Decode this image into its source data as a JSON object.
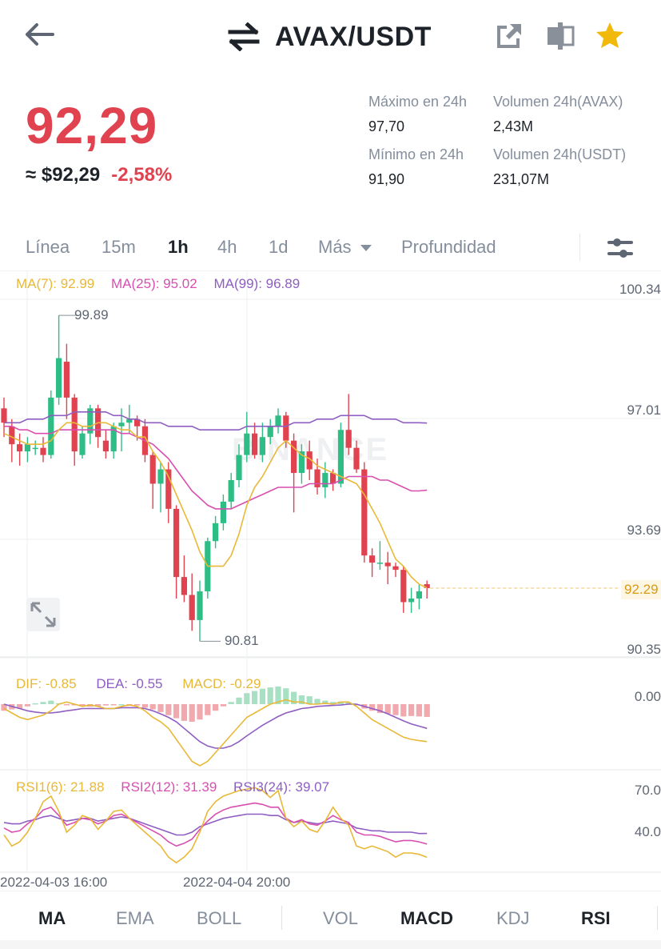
{
  "header": {
    "pair": "AVAX/USDT",
    "icons": [
      "back-arrow-icon",
      "swap-icon",
      "share-icon",
      "compare-icon",
      "star-icon"
    ]
  },
  "price": {
    "last": "92,29",
    "usd": "≈ $92,29",
    "change": "-2,58%"
  },
  "stats": {
    "high_label": "Máximo en 24h",
    "high": "97,70",
    "low_label": "Mínimo en 24h",
    "low": "91,90",
    "vol_base_label": "Volumen 24h(AVAX)",
    "vol_base": "2,43M",
    "vol_quote_label": "Volumen 24h(USDT)",
    "vol_quote": "231,07M"
  },
  "tabs": {
    "line": "Línea",
    "m15": "15m",
    "h1": "1h",
    "h4": "4h",
    "d1": "1d",
    "more": "Más",
    "depth": "Profundidad",
    "active": "1h"
  },
  "indicators": {
    "ma7": "MA(7): 92.99",
    "ma25": "MA(25): 95.02",
    "ma99": "MA(99): 96.89",
    "dif": "DIF: -0.85",
    "dea": "DEA: -0.55",
    "macd": "MACD: -0.29",
    "rsi1": "RSI1(6): 21.88",
    "rsi2": "RSI2(12): 31.39",
    "rsi3": "RSI3(24): 39.07"
  },
  "axis": {
    "price_ticks": [
      "100.34",
      "97.01",
      "93.69",
      "90.35"
    ],
    "current_price": "92.29",
    "high_mark": "99.89",
    "low_mark": "90.81",
    "macd_tick": "0.00",
    "rsi_ticks": [
      "70.0",
      "40.0"
    ],
    "time_ticks": [
      "2022-04-03 16:00",
      "2022-04-04 20:00"
    ]
  },
  "watermark": "BINANCE",
  "bottom": {
    "ma": "MA",
    "ema": "EMA",
    "boll": "BOLL",
    "vol": "VOL",
    "macd": "MACD",
    "kdj": "KDJ",
    "rsi": "RSI"
  },
  "colors": {
    "up": "#2ebd85",
    "down": "#e0434f",
    "ma7": "#e8b837",
    "ma25": "#d84fb0",
    "ma99": "#8e5ec2",
    "accent": "#f0b90b"
  },
  "chart_data": {
    "type": "candlestick",
    "interval": "1h",
    "candles": [
      {
        "o": 97.3,
        "h": 97.6,
        "l": 96.5,
        "c": 96.9
      },
      {
        "o": 96.8,
        "h": 97.0,
        "l": 95.8,
        "c": 96.3
      },
      {
        "o": 96.3,
        "h": 96.6,
        "l": 95.7,
        "c": 96.1
      },
      {
        "o": 96.1,
        "h": 96.5,
        "l": 95.8,
        "c": 96.3
      },
      {
        "o": 96.2,
        "h": 96.4,
        "l": 96.0,
        "c": 96.2
      },
      {
        "o": 96.2,
        "h": 96.5,
        "l": 95.8,
        "c": 96.0
      },
      {
        "o": 96.0,
        "h": 97.8,
        "l": 95.9,
        "c": 97.6
      },
      {
        "o": 97.6,
        "h": 99.89,
        "l": 97.4,
        "c": 98.7
      },
      {
        "o": 98.6,
        "h": 99.1,
        "l": 97.0,
        "c": 97.6
      },
      {
        "o": 97.6,
        "h": 97.7,
        "l": 95.7,
        "c": 96.1
      },
      {
        "o": 96.0,
        "h": 96.8,
        "l": 95.9,
        "c": 96.6
      },
      {
        "o": 96.6,
        "h": 97.4,
        "l": 96.3,
        "c": 97.3
      },
      {
        "o": 97.3,
        "h": 97.4,
        "l": 96.2,
        "c": 96.5
      },
      {
        "o": 96.4,
        "h": 96.7,
        "l": 95.9,
        "c": 96.1
      },
      {
        "o": 96.1,
        "h": 96.9,
        "l": 95.9,
        "c": 96.8
      },
      {
        "o": 96.8,
        "h": 97.3,
        "l": 96.1,
        "c": 96.9
      },
      {
        "o": 96.9,
        "h": 97.4,
        "l": 96.6,
        "c": 97.0
      },
      {
        "o": 97.0,
        "h": 97.1,
        "l": 96.4,
        "c": 96.8
      },
      {
        "o": 96.8,
        "h": 97.0,
        "l": 95.8,
        "c": 96.0
      },
      {
        "o": 96.0,
        "h": 96.1,
        "l": 94.5,
        "c": 95.2
      },
      {
        "o": 95.2,
        "h": 95.8,
        "l": 94.4,
        "c": 95.6
      },
      {
        "o": 95.6,
        "h": 95.8,
        "l": 94.1,
        "c": 94.5
      },
      {
        "o": 94.5,
        "h": 94.6,
        "l": 92.0,
        "c": 92.6
      },
      {
        "o": 92.6,
        "h": 93.2,
        "l": 91.9,
        "c": 92.1
      },
      {
        "o": 92.1,
        "h": 92.7,
        "l": 91.1,
        "c": 91.4
      },
      {
        "o": 91.4,
        "h": 92.5,
        "l": 90.81,
        "c": 92.2
      },
      {
        "o": 92.2,
        "h": 93.7,
        "l": 92.0,
        "c": 93.6
      },
      {
        "o": 93.6,
        "h": 94.3,
        "l": 93.4,
        "c": 94.1
      },
      {
        "o": 94.1,
        "h": 94.9,
        "l": 93.9,
        "c": 94.7
      },
      {
        "o": 94.7,
        "h": 95.5,
        "l": 94.5,
        "c": 95.3
      },
      {
        "o": 95.3,
        "h": 96.3,
        "l": 95.1,
        "c": 96.0
      },
      {
        "o": 96.0,
        "h": 97.2,
        "l": 95.8,
        "c": 96.6
      },
      {
        "o": 96.6,
        "h": 96.9,
        "l": 95.9,
        "c": 96.0
      },
      {
        "o": 96.0,
        "h": 96.9,
        "l": 95.8,
        "c": 96.5
      },
      {
        "o": 96.5,
        "h": 97.0,
        "l": 96.3,
        "c": 96.8
      },
      {
        "o": 96.8,
        "h": 97.3,
        "l": 96.6,
        "c": 97.1
      },
      {
        "o": 97.1,
        "h": 97.2,
        "l": 96.2,
        "c": 96.4
      },
      {
        "o": 96.4,
        "h": 96.6,
        "l": 94.4,
        "c": 95.5
      },
      {
        "o": 95.5,
        "h": 96.3,
        "l": 95.2,
        "c": 96.1
      },
      {
        "o": 96.1,
        "h": 96.4,
        "l": 95.3,
        "c": 95.6
      },
      {
        "o": 95.6,
        "h": 95.9,
        "l": 94.9,
        "c": 95.1
      },
      {
        "o": 95.1,
        "h": 95.8,
        "l": 94.8,
        "c": 95.5
      },
      {
        "o": 95.5,
        "h": 95.6,
        "l": 95.0,
        "c": 95.2
      },
      {
        "o": 95.2,
        "h": 96.9,
        "l": 95.1,
        "c": 96.7
      },
      {
        "o": 96.7,
        "h": 97.7,
        "l": 96.0,
        "c": 96.2
      },
      {
        "o": 96.2,
        "h": 96.4,
        "l": 95.5,
        "c": 95.6
      },
      {
        "o": 95.6,
        "h": 95.8,
        "l": 93.0,
        "c": 93.2
      },
      {
        "o": 93.2,
        "h": 93.4,
        "l": 92.6,
        "c": 93.0
      },
      {
        "o": 93.0,
        "h": 93.6,
        "l": 92.8,
        "c": 93.0
      },
      {
        "o": 93.0,
        "h": 93.3,
        "l": 92.4,
        "c": 92.9
      },
      {
        "o": 92.9,
        "h": 93.0,
        "l": 92.6,
        "c": 92.8
      },
      {
        "o": 92.8,
        "h": 92.9,
        "l": 91.6,
        "c": 91.9
      },
      {
        "o": 91.9,
        "h": 92.3,
        "l": 91.6,
        "c": 92.0
      },
      {
        "o": 92.0,
        "h": 92.4,
        "l": 91.7,
        "c": 92.2
      },
      {
        "o": 92.4,
        "h": 92.5,
        "l": 92.0,
        "c": 92.29
      }
    ],
    "ma7": [
      96.6,
      96.5,
      96.4,
      96.3,
      96.3,
      96.3,
      96.4,
      96.7,
      96.9,
      96.9,
      96.8,
      96.8,
      96.9,
      96.9,
      96.8,
      96.7,
      96.7,
      96.5,
      96.5,
      96.1,
      95.8,
      95.4,
      94.9,
      94.4,
      93.9,
      93.3,
      92.9,
      92.9,
      92.9,
      93.2,
      93.8,
      94.6,
      95.1,
      95.4,
      95.8,
      96.2,
      96.4,
      96.2,
      96.0,
      95.9,
      95.7,
      95.6,
      95.5,
      95.4,
      95.3,
      95.2,
      94.9,
      94.5,
      94.1,
      93.6,
      93.1,
      92.9,
      92.6,
      92.4,
      92.3
    ],
    "ma25": [
      96.8,
      96.8,
      96.7,
      96.7,
      96.6,
      96.6,
      96.6,
      96.7,
      96.7,
      96.7,
      96.7,
      96.7,
      96.7,
      96.7,
      96.7,
      96.6,
      96.6,
      96.5,
      96.4,
      96.3,
      96.1,
      95.9,
      95.6,
      95.3,
      95.0,
      94.8,
      94.6,
      94.5,
      94.5,
      94.5,
      94.6,
      94.7,
      94.8,
      94.9,
      95.0,
      95.1,
      95.1,
      95.1,
      95.1,
      95.2,
      95.2,
      95.2,
      95.2,
      95.3,
      95.4,
      95.4,
      95.4,
      95.4,
      95.3,
      95.3,
      95.2,
      95.1,
      95.0,
      95.0,
      95.02
    ],
    "ma99": [
      96.9,
      96.9,
      96.9,
      97.0,
      97.0,
      97.0,
      97.1,
      97.1,
      97.1,
      97.2,
      97.2,
      97.2,
      97.2,
      97.2,
      97.1,
      97.1,
      97.0,
      97.0,
      96.9,
      96.9,
      96.9,
      96.8,
      96.8,
      96.8,
      96.8,
      96.7,
      96.7,
      96.7,
      96.7,
      96.7,
      96.7,
      96.8,
      96.8,
      96.8,
      96.8,
      96.8,
      96.8,
      96.9,
      96.9,
      96.9,
      97.0,
      97.0,
      97.0,
      97.1,
      97.1,
      97.1,
      97.1,
      97.0,
      97.0,
      97.0,
      97.0,
      96.9,
      96.9,
      96.9,
      96.89
    ],
    "macd_hist": [
      -0.15,
      -0.12,
      -0.1,
      -0.05,
      0.02,
      0.05,
      0.08,
      0.02,
      -0.01,
      -0.02,
      -0.05,
      -0.06,
      -0.05,
      -0.03,
      -0.01,
      0.0,
      -0.01,
      -0.03,
      -0.08,
      -0.12,
      -0.18,
      -0.25,
      -0.32,
      -0.38,
      -0.4,
      -0.35,
      -0.25,
      -0.15,
      -0.05,
      0.05,
      0.15,
      0.25,
      0.3,
      0.35,
      0.38,
      0.4,
      0.36,
      0.28,
      0.2,
      0.18,
      0.12,
      0.08,
      0.05,
      0.06,
      0.04,
      -0.02,
      -0.1,
      -0.15,
      -0.2,
      -0.22,
      -0.25,
      -0.28,
      -0.27,
      -0.28,
      -0.29
    ],
    "dif": [
      -0.1,
      -0.2,
      -0.3,
      -0.35,
      -0.3,
      -0.25,
      -0.15,
      0.0,
      0.05,
      0.0,
      -0.05,
      -0.02,
      -0.05,
      -0.1,
      -0.1,
      -0.05,
      -0.02,
      -0.05,
      -0.15,
      -0.3,
      -0.4,
      -0.55,
      -0.8,
      -1.05,
      -1.3,
      -1.4,
      -1.3,
      -1.1,
      -0.9,
      -0.7,
      -0.5,
      -0.3,
      -0.2,
      -0.1,
      0.0,
      0.05,
      0.1,
      0.05,
      0.05,
      0.0,
      0.0,
      0.02,
      0.0,
      0.05,
      0.05,
      -0.05,
      -0.2,
      -0.35,
      -0.45,
      -0.55,
      -0.65,
      -0.75,
      -0.8,
      -0.83,
      -0.85
    ],
    "dea": [
      0.0,
      -0.05,
      -0.1,
      -0.15,
      -0.18,
      -0.2,
      -0.2,
      -0.18,
      -0.15,
      -0.13,
      -0.1,
      -0.1,
      -0.1,
      -0.1,
      -0.1,
      -0.08,
      -0.08,
      -0.08,
      -0.1,
      -0.15,
      -0.22,
      -0.3,
      -0.4,
      -0.55,
      -0.7,
      -0.85,
      -0.95,
      -1.0,
      -1.0,
      -0.95,
      -0.85,
      -0.72,
      -0.6,
      -0.48,
      -0.38,
      -0.28,
      -0.2,
      -0.15,
      -0.1,
      -0.08,
      -0.05,
      -0.04,
      -0.03,
      -0.02,
      0.0,
      0.0,
      -0.05,
      -0.1,
      -0.15,
      -0.22,
      -0.3,
      -0.38,
      -0.45,
      -0.5,
      -0.55
    ],
    "rsi6": [
      38,
      30,
      33,
      40,
      50,
      62,
      66,
      55,
      40,
      45,
      52,
      50,
      42,
      48,
      55,
      56,
      50,
      45,
      40,
      35,
      30,
      22,
      18,
      22,
      28,
      40,
      55,
      62,
      66,
      68,
      70,
      71,
      72,
      70,
      65,
      70,
      50,
      44,
      48,
      42,
      40,
      48,
      58,
      50,
      45,
      30,
      28,
      30,
      28,
      26,
      22,
      25,
      25,
      24,
      21.88
    ],
    "rsi12": [
      43,
      40,
      41,
      46,
      50,
      56,
      58,
      52,
      45,
      47,
      50,
      49,
      46,
      48,
      52,
      53,
      50,
      47,
      44,
      41,
      38,
      33,
      30,
      32,
      35,
      42,
      48,
      53,
      56,
      58,
      59,
      60,
      61,
      60,
      58,
      58,
      50,
      47,
      49,
      46,
      45,
      48,
      52,
      49,
      47,
      40,
      38,
      38,
      37,
      35,
      33,
      34,
      34,
      33,
      31.39
    ],
    "rsi3": [
      47,
      46,
      46,
      48,
      49,
      51,
      52,
      50,
      48,
      49,
      50,
      50,
      48,
      49,
      50,
      51,
      50,
      48,
      46,
      44,
      42,
      40,
      38,
      38,
      40,
      44,
      46,
      48,
      50,
      51,
      52,
      53,
      53,
      53,
      52,
      52,
      49,
      47,
      48,
      47,
      46,
      47,
      48,
      47,
      46,
      43,
      42,
      41,
      41,
      40,
      40,
      40,
      40,
      39,
      39.07
    ],
    "price_axis_range": [
      90.35,
      100.34
    ],
    "macd_axis_zero": 0.0,
    "rsi_axis_ticks": [
      70.0,
      40.0
    ],
    "time_labels": [
      "2022-04-03 16:00",
      "2022-04-04 20:00"
    ],
    "high": 99.89,
    "low": 90.81,
    "last": 92.29
  }
}
